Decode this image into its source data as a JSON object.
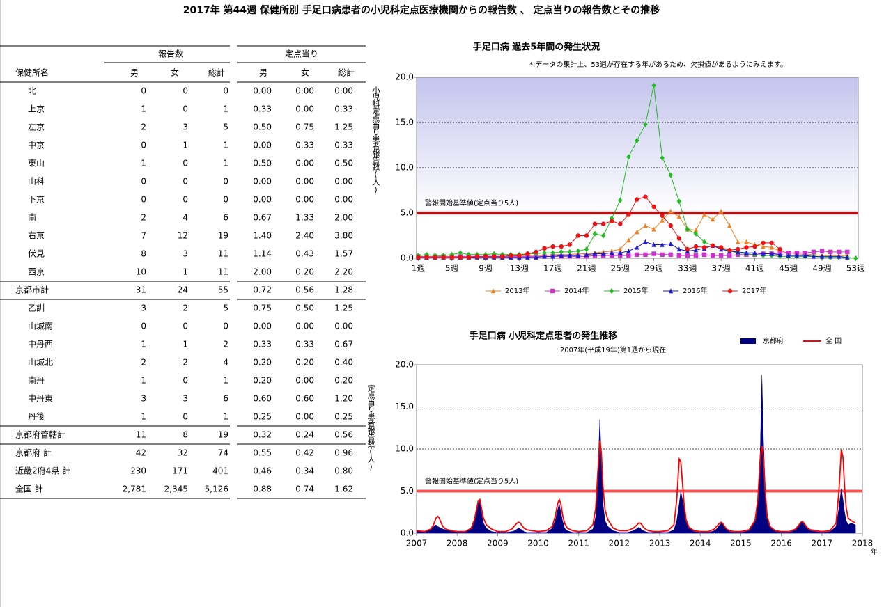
{
  "header": {
    "title": "2017年 第44週 保健所別 手足口病患者の小児科定点医療機関からの報告数 、 定点当りの報告数とその推移"
  },
  "table": {
    "group_headers": [
      "報告数",
      "定点当り"
    ],
    "columns": [
      "保健所名",
      "男",
      "女",
      "総計",
      "男",
      "女",
      "総計"
    ],
    "rows": [
      [
        "北",
        "0",
        "0",
        "0",
        "0.00",
        "0.00",
        "0.00"
      ],
      [
        "上京",
        "1",
        "0",
        "1",
        "0.33",
        "0.00",
        "0.33"
      ],
      [
        "左京",
        "2",
        "3",
        "5",
        "0.50",
        "0.75",
        "1.25"
      ],
      [
        "中京",
        "0",
        "1",
        "1",
        "0.00",
        "0.33",
        "0.33"
      ],
      [
        "東山",
        "1",
        "0",
        "1",
        "0.50",
        "0.00",
        "0.50"
      ],
      [
        "山科",
        "0",
        "0",
        "0",
        "0.00",
        "0.00",
        "0.00"
      ],
      [
        "下京",
        "0",
        "0",
        "0",
        "0.00",
        "0.00",
        "0.00"
      ],
      [
        "南",
        "2",
        "4",
        "6",
        "0.67",
        "1.33",
        "2.00"
      ],
      [
        "右京",
        "7",
        "12",
        "19",
        "1.40",
        "2.40",
        "3.80"
      ],
      [
        "伏見",
        "8",
        "3",
        "11",
        "1.14",
        "0.43",
        "1.57"
      ],
      [
        "西京",
        "10",
        "1",
        "11",
        "2.00",
        "0.20",
        "2.20"
      ],
      [
        "京都市計",
        "31",
        "24",
        "55",
        "0.72",
        "0.56",
        "1.28"
      ],
      [
        "乙訓",
        "3",
        "2",
        "5",
        "0.75",
        "0.50",
        "1.25"
      ],
      [
        "山城南",
        "0",
        "0",
        "0",
        "0.00",
        "0.00",
        "0.00"
      ],
      [
        "中丹西",
        "1",
        "1",
        "2",
        "0.33",
        "0.33",
        "0.67"
      ],
      [
        "山城北",
        "2",
        "2",
        "4",
        "0.20",
        "0.20",
        "0.40"
      ],
      [
        "南丹",
        "1",
        "0",
        "1",
        "0.20",
        "0.00",
        "0.20"
      ],
      [
        "中丹東",
        "3",
        "3",
        "6",
        "0.60",
        "0.60",
        "1.20"
      ],
      [
        "丹後",
        "1",
        "0",
        "1",
        "0.25",
        "0.00",
        "0.25"
      ],
      [
        "京都府管轄計",
        "11",
        "8",
        "19",
        "0.32",
        "0.24",
        "0.56"
      ],
      [
        "京都府 計",
        "42",
        "32",
        "74",
        "0.55",
        "0.42",
        "0.96"
      ],
      [
        "近畿2府4県 計",
        "230",
        "171",
        "401",
        "0.46",
        "0.34",
        "0.80"
      ],
      [
        "全国 計",
        "2,781",
        "2,345",
        "5,126",
        "0.88",
        "0.74",
        "1.62"
      ]
    ]
  },
  "chart_data": [
    {
      "type": "line",
      "title": "手足口病 過去5年間の発生状況",
      "note": "*:データの集計上、53週が存在する年があるため、欠損値があるようにみえます。",
      "y_label": "小児科定点当り患者報告数(人)",
      "legend": "bottom",
      "grid": true,
      "threshold": {
        "value": 5,
        "label": "警報開始基準値(定点当り5人)"
      },
      "xlim": [
        0.8,
        53.3
      ],
      "ylim": [
        0,
        20
      ],
      "xticks": [
        {
          "value": 1,
          "label": "1週"
        },
        {
          "value": 5,
          "label": "5週"
        },
        {
          "value": 9,
          "label": "9週"
        },
        {
          "value": 13,
          "label": "13週"
        },
        {
          "value": 17,
          "label": "17週"
        },
        {
          "value": 21,
          "label": "21週"
        },
        {
          "value": 25,
          "label": "25週"
        },
        {
          "value": 29,
          "label": "29週"
        },
        {
          "value": 33,
          "label": "33週"
        },
        {
          "value": 37,
          "label": "37週"
        },
        {
          "value": 41,
          "label": "41週"
        },
        {
          "value": 45,
          "label": "45週"
        },
        {
          "value": 49,
          "label": "49週"
        },
        {
          "value": 53,
          "label": "53週"
        }
      ],
      "yticks": [
        {
          "value": 0,
          "label": "0.0"
        },
        {
          "value": 5,
          "label": "5.0"
        },
        {
          "value": 10,
          "label": "10.0"
        },
        {
          "value": 15,
          "label": "15.0"
        },
        {
          "value": 20,
          "label": "20.0"
        }
      ],
      "x": [
        1,
        2,
        3,
        4,
        5,
        6,
        7,
        8,
        9,
        10,
        11,
        12,
        13,
        14,
        15,
        16,
        17,
        18,
        19,
        20,
        21,
        22,
        23,
        24,
        25,
        26,
        27,
        28,
        29,
        30,
        31,
        32,
        33,
        34,
        35,
        36,
        37,
        38,
        39,
        40,
        41,
        42,
        43,
        44,
        45,
        46,
        47,
        48,
        49,
        50,
        51,
        52,
        53
      ],
      "series": [
        {
          "name": "2013年",
          "color": "#f08020",
          "marker": "triangle",
          "values": [
            0.2,
            0.2,
            0.2,
            0.2,
            0.2,
            0.2,
            0.2,
            0.2,
            0.2,
            0.2,
            0.2,
            0.2,
            0.3,
            0.3,
            0.3,
            0.3,
            0.4,
            0.4,
            0.4,
            0.5,
            0.5,
            0.6,
            0.7,
            0.8,
            1.0,
            2.0,
            2.9,
            3.6,
            3.2,
            4.2,
            5.2,
            4.6,
            3.2,
            3.1,
            4.8,
            4.3,
            5.2,
            3.6,
            1.8,
            1.8,
            1.5,
            1.3,
            1.2,
            0.8,
            0.6,
            0.5,
            0.4,
            0.4,
            0.3,
            0.3,
            0.3,
            0.3,
            null
          ]
        },
        {
          "name": "2014年",
          "color": "#cc33cc",
          "marker": "square",
          "values": [
            0.2,
            0.2,
            0.2,
            0.2,
            0.2,
            0.2,
            0.2,
            0.2,
            0.2,
            0.2,
            0.2,
            0.2,
            0.2,
            0.2,
            0.2,
            0.2,
            0.2,
            0.2,
            0.2,
            0.2,
            0.2,
            0.3,
            0.3,
            0.3,
            0.3,
            0.3,
            0.4,
            0.4,
            0.5,
            0.4,
            0.4,
            0.3,
            0.3,
            0.3,
            0.4,
            0.3,
            0.3,
            0.3,
            0.4,
            0.4,
            0.4,
            0.5,
            0.5,
            0.6,
            0.6,
            0.6,
            0.6,
            0.7,
            0.8,
            0.7,
            0.7,
            0.7,
            null
          ]
        },
        {
          "name": "2015年",
          "color": "#22bb22",
          "marker": "diamond",
          "values": [
            0.3,
            0.4,
            0.3,
            0.3,
            0.4,
            0.6,
            0.4,
            0.4,
            0.4,
            0.5,
            0.4,
            0.4,
            0.4,
            0.5,
            0.5,
            0.6,
            0.6,
            0.7,
            0.7,
            0.8,
            1.0,
            2.7,
            2.5,
            4.4,
            6.4,
            11.2,
            13.0,
            14.8,
            19.1,
            11.1,
            9.2,
            6.3,
            3.2,
            2.7,
            1.8,
            1.4,
            1.1,
            0.8,
            0.6,
            0.5,
            0.4,
            0.3,
            0.3,
            0.2,
            0.2,
            0.2,
            0.2,
            0.2,
            0.1,
            0.1,
            0.1,
            0.1,
            0.0
          ]
        },
        {
          "name": "2016年",
          "color": "#1a1acc",
          "marker": "triangle",
          "values": [
            0.1,
            0.1,
            0.1,
            0.1,
            0.1,
            0.1,
            0.1,
            0.1,
            0.1,
            0.1,
            0.1,
            0.1,
            0.1,
            0.1,
            0.1,
            0.2,
            0.2,
            0.3,
            0.3,
            0.3,
            0.4,
            0.5,
            0.5,
            0.6,
            0.6,
            0.8,
            1.2,
            1.8,
            1.5,
            1.5,
            1.6,
            1.0,
            0.8,
            0.9,
            1.1,
            1.4,
            1.0,
            0.8,
            0.7,
            0.6,
            0.6,
            0.5,
            0.5,
            0.4,
            0.3,
            0.3,
            0.3,
            0.2,
            0.2,
            0.2,
            0.2,
            0.1,
            null
          ]
        },
        {
          "name": "2017年",
          "color": "#ee1111",
          "marker": "circle",
          "values": [
            0.1,
            0.1,
            0.1,
            0.1,
            0.1,
            0.1,
            0.1,
            0.2,
            0.2,
            0.2,
            0.2,
            0.3,
            0.3,
            0.5,
            0.7,
            1.1,
            1.3,
            1.3,
            1.5,
            2.5,
            2.5,
            3.8,
            3.8,
            4.1,
            3.8,
            4.8,
            6.5,
            6.8,
            5.7,
            4.7,
            3.6,
            2.2,
            1.0,
            1.3,
            1.2,
            1.4,
            1.2,
            0.9,
            1.0,
            1.2,
            1.3,
            1.7,
            1.7,
            1.0,
            null,
            null,
            null,
            null,
            null,
            null,
            null,
            null,
            null
          ]
        }
      ]
    },
    {
      "type": "line",
      "title": "手足口病 小児科定点患者の発生推移",
      "subtitle": "2007年(平成19年)第1週から現在",
      "y_label": "定点当り患者報告数(人)",
      "x_label": "年",
      "legend": "top-right",
      "grid": true,
      "threshold": {
        "value": 5,
        "label": "警報開始基準値(定点当り5人)"
      },
      "xlim": [
        2007,
        2018
      ],
      "ylim": [
        0,
        20
      ],
      "xticks": [
        2007,
        2008,
        2009,
        2010,
        2011,
        2012,
        2013,
        2014,
        2015,
        2016,
        2017,
        2018
      ],
      "yticks": [
        {
          "value": 0,
          "label": "0.0"
        },
        {
          "value": 5,
          "label": "5.0"
        },
        {
          "value": 10,
          "label": "10.0"
        },
        {
          "value": 15,
          "label": "15.0"
        },
        {
          "value": 20,
          "label": "20.0"
        }
      ],
      "x": [
        2007,
        2007.2,
        2007.35,
        2007.42,
        2007.48,
        2007.52,
        2007.56,
        2007.6,
        2007.65,
        2007.72,
        2007.85,
        2008,
        2008.2,
        2008.35,
        2008.42,
        2008.48,
        2008.52,
        2008.56,
        2008.6,
        2008.65,
        2008.72,
        2008.85,
        2009,
        2009.2,
        2009.35,
        2009.42,
        2009.48,
        2009.52,
        2009.56,
        2009.6,
        2009.65,
        2009.72,
        2009.85,
        2010,
        2010.2,
        2010.35,
        2010.42,
        2010.48,
        2010.52,
        2010.56,
        2010.6,
        2010.65,
        2010.72,
        2010.85,
        2011,
        2011.2,
        2011.35,
        2011.42,
        2011.48,
        2011.52,
        2011.56,
        2011.6,
        2011.65,
        2011.72,
        2011.85,
        2012,
        2012.2,
        2012.35,
        2012.42,
        2012.48,
        2012.52,
        2012.56,
        2012.6,
        2012.65,
        2012.72,
        2012.85,
        2013,
        2013.2,
        2013.35,
        2013.42,
        2013.48,
        2013.52,
        2013.56,
        2013.6,
        2013.65,
        2013.72,
        2013.85,
        2014,
        2014.2,
        2014.35,
        2014.42,
        2014.48,
        2014.52,
        2014.56,
        2014.6,
        2014.65,
        2014.72,
        2014.85,
        2015,
        2015.2,
        2015.35,
        2015.42,
        2015.48,
        2015.52,
        2015.56,
        2015.6,
        2015.65,
        2015.72,
        2015.85,
        2016,
        2016.2,
        2016.35,
        2016.42,
        2016.48,
        2016.52,
        2016.56,
        2016.6,
        2016.65,
        2016.72,
        2016.85,
        2017,
        2017.2,
        2017.35,
        2017.42,
        2017.48,
        2017.52,
        2017.56,
        2017.6,
        2017.65,
        2017.72,
        2017.83
      ],
      "series": [
        {
          "name": "京都府",
          "color": "#000080",
          "style": "area",
          "values": [
            0.3,
            0.2,
            0.4,
            0.8,
            1.0,
            0.8,
            0.7,
            0.6,
            0.5,
            0.4,
            0.3,
            0.2,
            0.2,
            0.5,
            1.5,
            2.5,
            3.5,
            4.0,
            2.5,
            1.2,
            0.6,
            0.2,
            0.1,
            0.1,
            0.2,
            0.3,
            0.5,
            0.6,
            0.5,
            0.4,
            0.2,
            0.1,
            0.1,
            0.1,
            0.1,
            0.6,
            1.5,
            2.8,
            3.5,
            2.5,
            1.5,
            0.6,
            0.3,
            0.1,
            0.1,
            0.1,
            0.5,
            2.0,
            8.0,
            13.5,
            9.0,
            3.5,
            1.5,
            0.8,
            0.3,
            0.1,
            0.1,
            0.3,
            0.5,
            0.7,
            0.6,
            0.4,
            0.3,
            0.2,
            0.1,
            0.1,
            0.1,
            0.1,
            0.4,
            1.5,
            3.5,
            5.0,
            4.0,
            3.0,
            1.5,
            0.6,
            0.2,
            0.1,
            0.1,
            0.3,
            0.6,
            1.0,
            1.2,
            1.0,
            0.7,
            0.4,
            0.2,
            0.1,
            0.1,
            0.3,
            1.5,
            4.0,
            10.0,
            18.8,
            11.0,
            5.5,
            2.0,
            0.8,
            0.3,
            0.1,
            0.1,
            0.4,
            0.8,
            1.2,
            1.5,
            1.2,
            0.8,
            0.5,
            0.3,
            0.2,
            0.1,
            0.2,
            0.8,
            3.0,
            5.3,
            4.0,
            2.5,
            1.5,
            1.0,
            1.2,
            1.0
          ]
        },
        {
          "name": "全 国",
          "color": "#ff0000",
          "style": "line",
          "values": [
            0.3,
            0.2,
            0.5,
            1.0,
            1.8,
            2.0,
            1.8,
            1.3,
            0.8,
            0.5,
            0.3,
            0.2,
            0.2,
            0.6,
            1.5,
            2.8,
            3.8,
            4.0,
            3.0,
            1.8,
            1.0,
            0.5,
            0.2,
            0.2,
            0.5,
            0.9,
            1.2,
            1.3,
            1.2,
            0.9,
            0.6,
            0.4,
            0.3,
            0.2,
            0.3,
            0.8,
            2.0,
            3.5,
            4.0,
            3.5,
            2.2,
            1.2,
            0.6,
            0.3,
            0.2,
            0.3,
            1.0,
            3.0,
            8.0,
            11.0,
            9.5,
            5.5,
            2.8,
            1.6,
            0.6,
            0.3,
            0.3,
            0.6,
            0.9,
            1.2,
            1.2,
            1.0,
            0.7,
            0.5,
            0.3,
            0.2,
            0.2,
            0.3,
            1.0,
            4.0,
            8.8,
            8.5,
            6.0,
            3.5,
            1.6,
            0.7,
            0.3,
            0.2,
            0.2,
            0.5,
            0.9,
            1.2,
            1.3,
            1.1,
            0.8,
            0.5,
            0.3,
            0.2,
            0.2,
            0.4,
            1.5,
            4.0,
            9.0,
            10.4,
            9.0,
            5.0,
            2.0,
            0.8,
            0.3,
            0.2,
            0.2,
            0.5,
            0.9,
            1.3,
            1.4,
            1.2,
            0.9,
            0.6,
            0.4,
            0.3,
            0.2,
            0.3,
            1.2,
            5.0,
            9.9,
            9.0,
            5.5,
            3.0,
            1.8,
            1.5,
            1.2
          ]
        }
      ]
    }
  ]
}
